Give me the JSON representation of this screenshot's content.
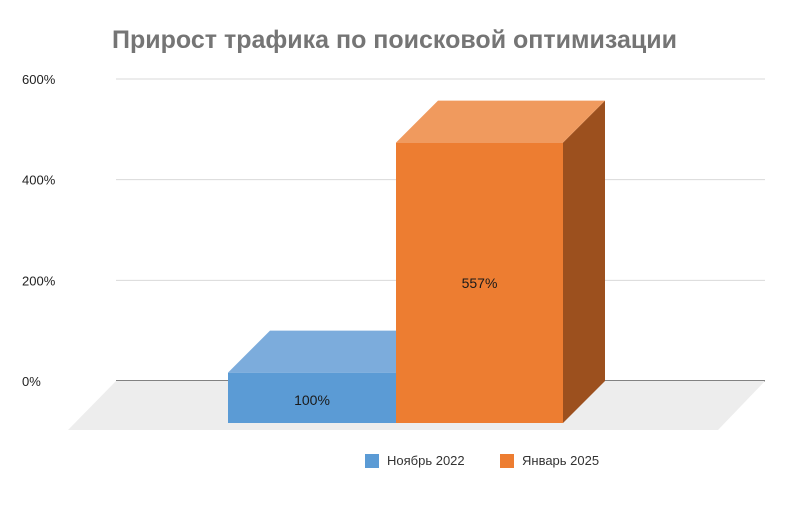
{
  "chart_data": {
    "type": "bar",
    "title": "Прирост трафика по поисковой оптимизации",
    "xlabel": "",
    "ylabel": "",
    "categories": [
      ""
    ],
    "series": [
      {
        "name": "Ноябрь 2022",
        "values": [
          100
        ],
        "value_label": "100%",
        "color": "#5B9BD5"
      },
      {
        "name": "Январь 2025",
        "values": [
          557
        ],
        "value_label": "557%",
        "color": "#ED7D31"
      }
    ],
    "y_ticks": [
      {
        "value": 0,
        "label": "0%"
      },
      {
        "value": 200,
        "label": "200%"
      },
      {
        "value": 400,
        "label": "400%"
      },
      {
        "value": 600,
        "label": "600%"
      }
    ],
    "ylim": [
      0,
      600
    ],
    "grid": true,
    "legend_position": "bottom",
    "style": "3d-column",
    "colors": {
      "grid": "#D9D9D9",
      "axis": "#595959",
      "floor": "#EDEDED",
      "blue_top": "#7CACDC",
      "blue_side": "#3F78B0",
      "orange_top": "#F09A5E",
      "orange_side": "#9C501E"
    }
  }
}
